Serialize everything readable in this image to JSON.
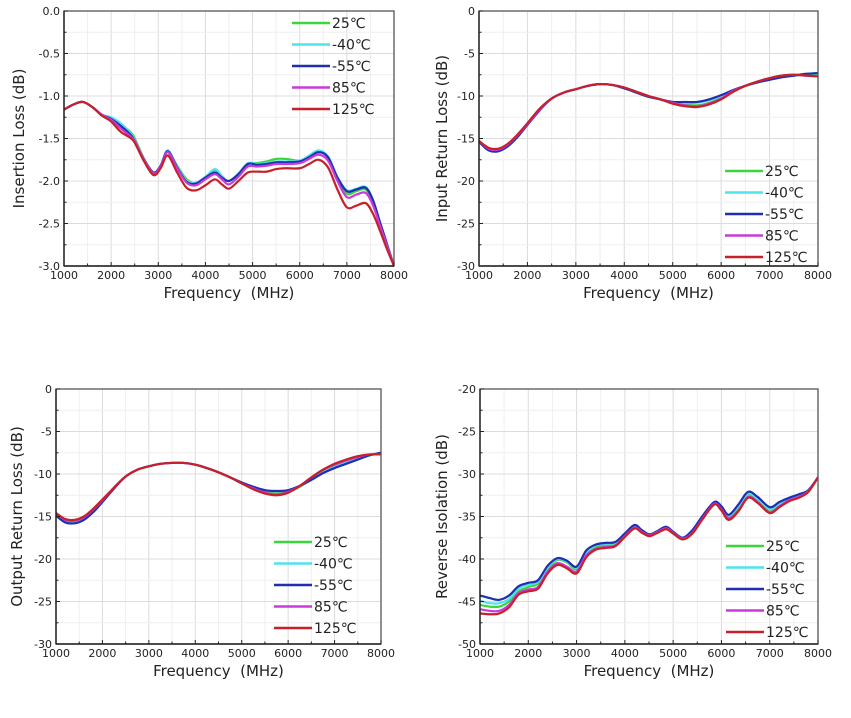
{
  "series_styles": [
    {
      "name": "25℃",
      "color": "#3bd63b"
    },
    {
      "name": "-40℃",
      "color": "#4fe3ee"
    },
    {
      "name": "-55℃",
      "color": "#1f2fb0"
    },
    {
      "name": "85℃",
      "color": "#c93ad9"
    },
    {
      "name": "125℃",
      "color": "#c8202a"
    }
  ],
  "chart_data": [
    {
      "type": "line",
      "title": "",
      "xlabel": "Frequency  (MHz)",
      "ylabel": "Insertion Loss (dB)",
      "xlim": [
        1000,
        8000
      ],
      "ylim": [
        -3.0,
        0.0
      ],
      "xticks": [
        "1000",
        "2000",
        "3000",
        "4000",
        "5000",
        "6000",
        "7000",
        "8000"
      ],
      "yticks": [
        "0.0",
        "-0.5",
        "-1.0",
        "-1.5",
        "-2.0",
        "-2.5",
        "-3.0"
      ],
      "ytick_values": [
        0,
        -0.5,
        -1.0,
        -1.5,
        -2.0,
        -2.5,
        -3.0
      ],
      "grid": true,
      "legend": "top-right",
      "x": [
        1000,
        1200,
        1400,
        1600,
        1800,
        2000,
        2200,
        2400,
        2500,
        2700,
        2900,
        3050,
        3200,
        3400,
        3600,
        3800,
        4000,
        4200,
        4350,
        4500,
        4700,
        4900,
        5100,
        5300,
        5500,
        5700,
        6000,
        6200,
        6400,
        6600,
        6800,
        7000,
        7200,
        7400,
        7550,
        7700,
        7850,
        8000
      ],
      "series": [
        {
          "name": "25℃",
          "values": [
            -1.16,
            -1.1,
            -1.07,
            -1.13,
            -1.22,
            -1.26,
            -1.33,
            -1.42,
            -1.5,
            -1.74,
            -1.9,
            -1.82,
            -1.65,
            -1.82,
            -1.98,
            -2.03,
            -1.97,
            -1.87,
            -1.95,
            -2.0,
            -1.92,
            -1.8,
            -1.79,
            -1.77,
            -1.74,
            -1.74,
            -1.76,
            -1.72,
            -1.65,
            -1.72,
            -1.97,
            -2.15,
            -2.12,
            -2.1,
            -2.25,
            -2.5,
            -2.75,
            -3.0
          ]
        },
        {
          "name": "-40℃",
          "values": [
            -1.16,
            -1.1,
            -1.07,
            -1.13,
            -1.22,
            -1.25,
            -1.32,
            -1.43,
            -1.52,
            -1.75,
            -1.9,
            -1.82,
            -1.64,
            -1.83,
            -2.0,
            -2.02,
            -1.95,
            -1.86,
            -1.94,
            -2.0,
            -1.91,
            -1.79,
            -1.8,
            -1.79,
            -1.77,
            -1.77,
            -1.76,
            -1.7,
            -1.64,
            -1.71,
            -1.95,
            -2.11,
            -2.09,
            -2.07,
            -2.22,
            -2.48,
            -2.74,
            -3.0
          ]
        },
        {
          "name": "-55℃",
          "values": [
            -1.16,
            -1.1,
            -1.07,
            -1.13,
            -1.22,
            -1.27,
            -1.35,
            -1.45,
            -1.53,
            -1.75,
            -1.9,
            -1.82,
            -1.65,
            -1.84,
            -2.01,
            -2.03,
            -1.96,
            -1.9,
            -1.96,
            -2.0,
            -1.92,
            -1.8,
            -1.81,
            -1.8,
            -1.78,
            -1.78,
            -1.77,
            -1.72,
            -1.66,
            -1.72,
            -1.96,
            -2.12,
            -2.1,
            -2.08,
            -2.22,
            -2.48,
            -2.74,
            -3.0
          ]
        },
        {
          "name": "85℃",
          "values": [
            -1.16,
            -1.1,
            -1.07,
            -1.13,
            -1.22,
            -1.28,
            -1.38,
            -1.47,
            -1.53,
            -1.75,
            -1.91,
            -1.83,
            -1.66,
            -1.85,
            -2.02,
            -2.05,
            -1.98,
            -1.92,
            -1.98,
            -2.04,
            -1.95,
            -1.83,
            -1.83,
            -1.82,
            -1.8,
            -1.8,
            -1.79,
            -1.74,
            -1.69,
            -1.76,
            -2.0,
            -2.19,
            -2.16,
            -2.14,
            -2.28,
            -2.52,
            -2.76,
            -3.0
          ]
        },
        {
          "name": "125℃",
          "values": [
            -1.16,
            -1.1,
            -1.07,
            -1.13,
            -1.23,
            -1.3,
            -1.42,
            -1.49,
            -1.55,
            -1.77,
            -1.93,
            -1.85,
            -1.7,
            -1.9,
            -2.08,
            -2.11,
            -2.05,
            -1.98,
            -2.04,
            -2.09,
            -2.0,
            -1.9,
            -1.89,
            -1.89,
            -1.86,
            -1.85,
            -1.85,
            -1.8,
            -1.75,
            -1.84,
            -2.1,
            -2.31,
            -2.29,
            -2.26,
            -2.38,
            -2.58,
            -2.8,
            -3.0
          ]
        }
      ]
    },
    {
      "type": "line",
      "title": "",
      "xlabel": "Frequency  (MHz)",
      "ylabel": "Input Return Loss (dB)",
      "xlim": [
        1000,
        8000
      ],
      "ylim": [
        -30,
        0
      ],
      "xticks": [
        "1000",
        "2000",
        "3000",
        "4000",
        "5000",
        "6000",
        "7000",
        "8000"
      ],
      "yticks": [
        "0",
        "-5",
        "-10",
        "-15",
        "-20",
        "-25",
        "-30"
      ],
      "ytick_values": [
        0,
        -5,
        -10,
        -15,
        -20,
        -25,
        -30
      ],
      "grid": true,
      "legend": "bottom-right",
      "x": [
        1000,
        1200,
        1400,
        1600,
        1800,
        2000,
        2250,
        2500,
        2750,
        3000,
        3250,
        3500,
        3750,
        4000,
        4250,
        4500,
        4750,
        5000,
        5250,
        5500,
        5750,
        6000,
        6250,
        6500,
        6750,
        7000,
        7250,
        7500,
        7750,
        8000
      ],
      "series": [
        {
          "name": "25℃",
          "values": [
            -15.3,
            -16.2,
            -16.3,
            -15.7,
            -14.6,
            -13.3,
            -11.6,
            -10.3,
            -9.6,
            -9.2,
            -8.8,
            -8.6,
            -8.7,
            -9.1,
            -9.5,
            -10.0,
            -10.4,
            -10.8,
            -11.0,
            -11.1,
            -10.8,
            -10.2,
            -9.4,
            -8.8,
            -8.4,
            -8.0,
            -7.7,
            -7.6,
            -7.5,
            -7.6
          ]
        },
        {
          "name": "-40℃",
          "values": [
            -15.3,
            -16.3,
            -16.4,
            -15.8,
            -14.7,
            -13.3,
            -11.6,
            -10.3,
            -9.6,
            -9.2,
            -8.8,
            -8.6,
            -8.7,
            -9.1,
            -9.5,
            -10.0,
            -10.4,
            -10.7,
            -10.8,
            -10.8,
            -10.5,
            -10.0,
            -9.3,
            -8.8,
            -8.4,
            -8.0,
            -7.8,
            -7.6,
            -7.4,
            -7.3
          ]
        },
        {
          "name": "-55℃",
          "values": [
            -15.4,
            -16.4,
            -16.5,
            -15.9,
            -14.8,
            -13.4,
            -11.7,
            -10.3,
            -9.6,
            -9.2,
            -8.8,
            -8.6,
            -8.7,
            -9.1,
            -9.6,
            -10.1,
            -10.4,
            -10.7,
            -10.7,
            -10.7,
            -10.4,
            -9.9,
            -9.3,
            -8.8,
            -8.4,
            -8.1,
            -7.8,
            -7.6,
            -7.4,
            -7.3
          ]
        },
        {
          "name": "85℃",
          "values": [
            -15.3,
            -16.2,
            -16.3,
            -15.7,
            -14.6,
            -13.3,
            -11.6,
            -10.3,
            -9.6,
            -9.2,
            -8.8,
            -8.6,
            -8.7,
            -9.0,
            -9.5,
            -10.0,
            -10.4,
            -10.8,
            -11.1,
            -11.2,
            -10.9,
            -10.3,
            -9.4,
            -8.8,
            -8.3,
            -7.9,
            -7.6,
            -7.5,
            -7.6,
            -7.7
          ]
        },
        {
          "name": "125℃",
          "values": [
            -15.3,
            -16.1,
            -16.2,
            -15.6,
            -14.5,
            -13.2,
            -11.5,
            -10.3,
            -9.6,
            -9.2,
            -8.8,
            -8.6,
            -8.7,
            -9.0,
            -9.5,
            -10.0,
            -10.4,
            -10.9,
            -11.2,
            -11.3,
            -11.0,
            -10.4,
            -9.5,
            -8.8,
            -8.3,
            -7.9,
            -7.6,
            -7.5,
            -7.6,
            -7.7
          ]
        }
      ]
    },
    {
      "type": "line",
      "title": "",
      "xlabel": "Frequency  (MHz)",
      "ylabel": "Output Return Loss (dB)",
      "xlim": [
        1000,
        8000
      ],
      "ylim": [
        -30,
        0
      ],
      "xticks": [
        "1000",
        "2000",
        "3000",
        "4000",
        "5000",
        "6000",
        "7000",
        "8000"
      ],
      "yticks": [
        "0",
        "-5",
        "-10",
        "-15",
        "-20",
        "-25",
        "-30"
      ],
      "ytick_values": [
        0,
        -5,
        -10,
        -15,
        -20,
        -25,
        -30
      ],
      "grid": true,
      "legend": "bottom-right",
      "x": [
        1000,
        1200,
        1400,
        1600,
        1800,
        2000,
        2250,
        2500,
        2750,
        3000,
        3250,
        3500,
        3750,
        4000,
        4250,
        4500,
        4750,
        5000,
        5250,
        5500,
        5750,
        6000,
        6250,
        6500,
        6750,
        7000,
        7250,
        7500,
        7750,
        8000
      ],
      "series": [
        {
          "name": "25℃",
          "values": [
            -14.7,
            -15.4,
            -15.5,
            -15.1,
            -14.2,
            -13.1,
            -11.6,
            -10.3,
            -9.5,
            -9.1,
            -8.8,
            -8.7,
            -8.7,
            -8.9,
            -9.3,
            -9.8,
            -10.4,
            -11.0,
            -11.6,
            -12.1,
            -12.3,
            -12.1,
            -11.5,
            -10.6,
            -9.7,
            -9.0,
            -8.5,
            -8.1,
            -7.8,
            -7.6
          ]
        },
        {
          "name": "-40℃",
          "values": [
            -14.8,
            -15.6,
            -15.7,
            -15.3,
            -14.4,
            -13.2,
            -11.7,
            -10.3,
            -9.5,
            -9.1,
            -8.8,
            -8.7,
            -8.7,
            -8.9,
            -9.3,
            -9.8,
            -10.4,
            -11.0,
            -11.5,
            -11.9,
            -12.0,
            -11.9,
            -11.4,
            -10.6,
            -9.8,
            -9.2,
            -8.7,
            -8.2,
            -7.8,
            -7.5
          ]
        },
        {
          "name": "-55℃",
          "values": [
            -14.9,
            -15.7,
            -15.8,
            -15.4,
            -14.5,
            -13.3,
            -11.7,
            -10.3,
            -9.5,
            -9.1,
            -8.8,
            -8.7,
            -8.7,
            -8.9,
            -9.3,
            -9.8,
            -10.4,
            -11.0,
            -11.5,
            -11.9,
            -12.0,
            -11.9,
            -11.4,
            -10.7,
            -9.9,
            -9.3,
            -8.8,
            -8.3,
            -7.8,
            -7.5
          ]
        },
        {
          "name": "85℃",
          "values": [
            -14.6,
            -15.4,
            -15.5,
            -15.1,
            -14.2,
            -13.1,
            -11.6,
            -10.3,
            -9.5,
            -9.1,
            -8.8,
            -8.7,
            -8.7,
            -8.9,
            -9.3,
            -9.8,
            -10.4,
            -11.1,
            -11.7,
            -12.2,
            -12.4,
            -12.1,
            -11.4,
            -10.4,
            -9.5,
            -8.9,
            -8.4,
            -8.0,
            -7.7,
            -7.7
          ]
        },
        {
          "name": "125℃",
          "values": [
            -14.6,
            -15.3,
            -15.4,
            -15.0,
            -14.1,
            -13.0,
            -11.6,
            -10.3,
            -9.5,
            -9.1,
            -8.8,
            -8.7,
            -8.7,
            -8.9,
            -9.3,
            -9.8,
            -10.4,
            -11.1,
            -11.8,
            -12.3,
            -12.5,
            -12.2,
            -11.4,
            -10.4,
            -9.5,
            -8.8,
            -8.3,
            -7.9,
            -7.7,
            -7.7
          ]
        }
      ]
    },
    {
      "type": "line",
      "title": "",
      "xlabel": "Frequency  (MHz)",
      "ylabel": "Reverse Isolation (dB)",
      "xlim": [
        1000,
        8000
      ],
      "ylim": [
        -50,
        -20
      ],
      "xticks": [
        "1000",
        "2000",
        "3000",
        "4000",
        "5000",
        "6000",
        "7000",
        "8000"
      ],
      "yticks": [
        "-20",
        "-25",
        "-30",
        "-35",
        "-40",
        "-45",
        "-50"
      ],
      "ytick_values": [
        -20,
        -25,
        -30,
        -35,
        -40,
        -45,
        -50
      ],
      "grid": true,
      "legend": "bottom-right",
      "x": [
        1000,
        1200,
        1400,
        1600,
        1800,
        2000,
        2200,
        2400,
        2600,
        2800,
        3000,
        3200,
        3400,
        3600,
        3800,
        4000,
        4200,
        4350,
        4500,
        4650,
        4850,
        5000,
        5200,
        5400,
        5600,
        5850,
        6000,
        6150,
        6350,
        6550,
        6750,
        7000,
        7200,
        7400,
        7600,
        7800,
        8000
      ],
      "series": [
        {
          "name": "25℃",
          "values": [
            -45.4,
            -45.6,
            -45.6,
            -45.0,
            -43.8,
            -43.3,
            -42.9,
            -41.2,
            -40.1,
            -40.4,
            -41.2,
            -39.4,
            -38.6,
            -38.4,
            -38.2,
            -37.2,
            -36.2,
            -36.6,
            -37.1,
            -36.8,
            -36.3,
            -36.8,
            -37.5,
            -36.8,
            -35.2,
            -33.4,
            -34.0,
            -35.0,
            -34.0,
            -32.4,
            -33.0,
            -34.2,
            -33.6,
            -33.0,
            -32.6,
            -31.9,
            -30.4
          ]
        },
        {
          "name": "-40℃",
          "values": [
            -44.9,
            -45.2,
            -45.2,
            -44.7,
            -43.5,
            -43.0,
            -42.7,
            -41.0,
            -40.0,
            -40.3,
            -41.0,
            -39.2,
            -38.4,
            -38.2,
            -38.1,
            -37.1,
            -36.1,
            -36.6,
            -37.1,
            -36.8,
            -36.3,
            -36.8,
            -37.5,
            -36.7,
            -35.1,
            -33.4,
            -33.9,
            -34.9,
            -33.8,
            -32.3,
            -32.9,
            -34.1,
            -33.5,
            -32.9,
            -32.5,
            -31.9,
            -30.4
          ]
        },
        {
          "name": "-55℃",
          "values": [
            -44.3,
            -44.6,
            -44.8,
            -44.3,
            -43.2,
            -42.8,
            -42.5,
            -40.8,
            -39.9,
            -40.2,
            -40.9,
            -39.0,
            -38.3,
            -38.1,
            -38.0,
            -37.0,
            -36.0,
            -36.6,
            -37.1,
            -36.8,
            -36.2,
            -36.8,
            -37.5,
            -36.6,
            -35.0,
            -33.3,
            -33.8,
            -34.8,
            -33.6,
            -32.1,
            -32.7,
            -33.9,
            -33.3,
            -32.8,
            -32.4,
            -31.9,
            -30.4
          ]
        },
        {
          "name": "85℃",
          "values": [
            -45.9,
            -46.1,
            -46.1,
            -45.4,
            -44.0,
            -43.6,
            -43.3,
            -41.5,
            -40.5,
            -40.9,
            -41.5,
            -39.6,
            -38.8,
            -38.6,
            -38.4,
            -37.3,
            -36.3,
            -36.8,
            -37.2,
            -36.9,
            -36.4,
            -36.9,
            -37.6,
            -36.9,
            -35.3,
            -33.5,
            -34.2,
            -35.2,
            -34.3,
            -32.7,
            -33.3,
            -34.5,
            -33.8,
            -33.1,
            -32.7,
            -32.0,
            -30.4
          ]
        },
        {
          "name": "125℃",
          "values": [
            -46.4,
            -46.5,
            -46.4,
            -45.7,
            -44.2,
            -43.8,
            -43.5,
            -41.7,
            -40.7,
            -41.1,
            -41.7,
            -39.8,
            -38.9,
            -38.7,
            -38.5,
            -37.4,
            -36.4,
            -36.9,
            -37.3,
            -37.0,
            -36.5,
            -37.0,
            -37.7,
            -37.0,
            -35.4,
            -33.6,
            -34.3,
            -35.4,
            -34.4,
            -32.8,
            -33.4,
            -34.6,
            -33.9,
            -33.2,
            -32.8,
            -32.1,
            -30.4
          ]
        }
      ]
    }
  ]
}
